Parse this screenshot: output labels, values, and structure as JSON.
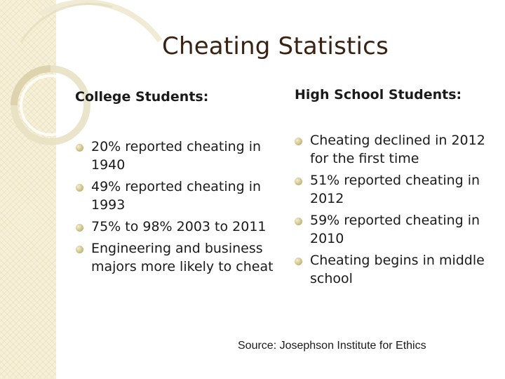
{
  "slide": {
    "title": "Cheating Statistics",
    "left_column": {
      "heading": "College Students:",
      "bullets": [
        "20% reported cheating in 1940",
        "49% reported cheating in 1993",
        "75% to 98% 2003 to 2011",
        "Engineering and business majors more likely to cheat"
      ]
    },
    "right_column": {
      "heading": "High School Students:",
      "bullets": [
        "Cheating declined in 2012 for the first time",
        "51% reported cheating in 2012",
        "59% reported cheating in 2010",
        "Cheating begins in middle school"
      ]
    },
    "source": "Source: Josephson Institute for Ethics"
  },
  "colors": {
    "title": "#3a2212",
    "band": "#f6f0d8",
    "bullet": "#cfc38b"
  }
}
